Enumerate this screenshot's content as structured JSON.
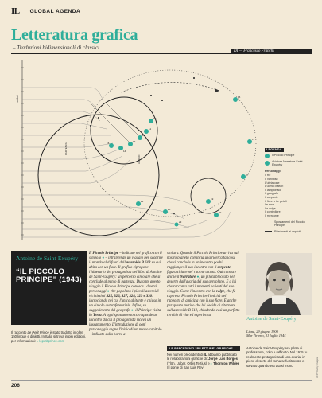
{
  "header": {
    "logo": "IL",
    "section": "GLOBAL AGENDA",
    "title": "Letteratura grafica",
    "subtitle": "– Traduzioni bidimensionali di classici",
    "author": "DI — Francesco Franchi"
  },
  "diagram": {
    "axis_label": "capitoli",
    "arrival_label": "ARRIVO",
    "departure_label": "PARTENZA",
    "planet_numbers": [
      "1",
      "2",
      "3",
      "4",
      "5",
      "6",
      "7",
      "8",
      "9",
      "10",
      "11",
      "12",
      "13",
      "14",
      "15",
      "16",
      "17",
      "18",
      "19",
      "20",
      "21",
      "22",
      "23",
      "24",
      "25",
      "26",
      "27"
    ]
  },
  "legend": {
    "title": "LEGENDA",
    "characters": [
      {
        "label": "Il Piccolo Principe"
      },
      {
        "label": "Aviatore Narratore Saint-Exupéry"
      }
    ],
    "section_title": "Personaggi",
    "items": [
      "Il Re",
      "Il Vanitoso",
      "L'ubriacone",
      "L'uomo d'affari",
      "Il lampionaio",
      "Il geografo",
      "Il serpente",
      "Il fiore a tre petali",
      "Le rose",
      "La volpe",
      "Il controllore",
      "Il mercante"
    ],
    "line_items": [
      "Spostamenti del Piccolo Principe",
      "Riferimenti ai capitoli"
    ]
  },
  "black_box": {
    "name": "Antoine de Saint-Exupéry",
    "book_title": "“IL PICCOLO PRINCIPE” (1943)"
  },
  "col1": {
    "text_a": "Il Piccolo Principe",
    "text_b": "– indicato nel grafico con il simbolo",
    "text_c": "– intraprende un viaggio per scoprire il mondo al di fuori dell'",
    "asteroid": "asteroide B 612",
    "text_d": "su cui abita con un fiore.",
    "text_e": "Il grafico ripropone l'itinerario del protagonista del libro di Antoine de Saint-Exupéry: un percorso circolare che si conclude al punto di partenza. Durante questo viaggio il Piccolo Principe conosce i diversi personaggi",
    "text_f": "che popolano i piccoli asteroidi vicinissimi",
    "nums": "325, 326, 327, 328, 329 e 330",
    "text_g": ": incrociando nei cui l'unico abitante è chiuso in un circolo autoreferenziale. Infine, su suggerimento del geografo",
    "text_h": ", il Principe visita la",
    "terra": "Terra",
    "text_i": ". A ogni spostamento corrisponde un incontro da cui il protagonista ricava un insegnamento. L'introduzione di ogni personaggio segna l'inizio di un nuovo capitolo",
    "text_j": "– indicato sulla barra a"
  },
  "col2": {
    "text_a": "sinistra",
    "text_b": ". Quando il Piccolo Principe arriva sul nostro pianeta comincia una ricerca faticosa che si conclude in un incontro pochi raggiunge: il suo",
    "text_c": "incontro con il",
    "serpente": "serpente",
    "text_d": ", figura chiave nel ritorno a casa. Qui conosce anche il",
    "narratore": "Narratore",
    "text_e": ", un pilota bloccato nel deserto dall'avaria del suo aeroplano. È a lui che racconta tutti i momenti salienti del suo viaggio. Come l'incontro con la",
    "volpe": "volpe",
    "text_f": ", che fa capire al Piccolo Principe l'unicità del rapporto di amicizia con il suo fiore. È anche per questo motivo che lui decide di ritornare sull'asteroide B 612, chiudendo così un perfetto cerchio di vita ed esperienza."
  },
  "note": {
    "bar": "LE PRECEDENTI \"RILETTURE\" GRAFICHE",
    "text_a": "Nei numeri precedenti di",
    "il": "IL",
    "text_b": "abbiamo pubblicato le rielaborazioni grafiche di:",
    "name1": "Jorge Luis Borges",
    "work1": "(Tlön, Uqbar, Orbis Tertius)",
    "text_c": "e",
    "name2": "Thornton Wilder",
    "work2": "(Il ponte di San Luis Rey)"
  },
  "left_note": {
    "text_a": "Il racconto ",
    "italic": "Le Petit Prince",
    "text_b": " è stato tradotto in oltre 150 lingue e dialetti. In Italia si trova in più edizioni, per informazioni:",
    "link": "lepetitprince.com"
  },
  "photo": {
    "caption_name": "Antoine de Saint-Exupéry",
    "born": "Lione, 29 giugno 1900",
    "died": "Mar Tirreno, 31 luglio 1944",
    "text": "Antoine de Saint-Exupéry era pilota di professione, colto e raffinato. Nel 1935 fu realmente protagonista di una avaria, in pieno deserto del Sahara: fu ritrovato e salvato quando era quasi morto"
  },
  "footer": {
    "page_number": "206",
    "credit": "AFP / Getty Images"
  },
  "colors": {
    "accent": "#2fae9a",
    "background": "#f3ead7",
    "dark": "#1e1e1e"
  }
}
